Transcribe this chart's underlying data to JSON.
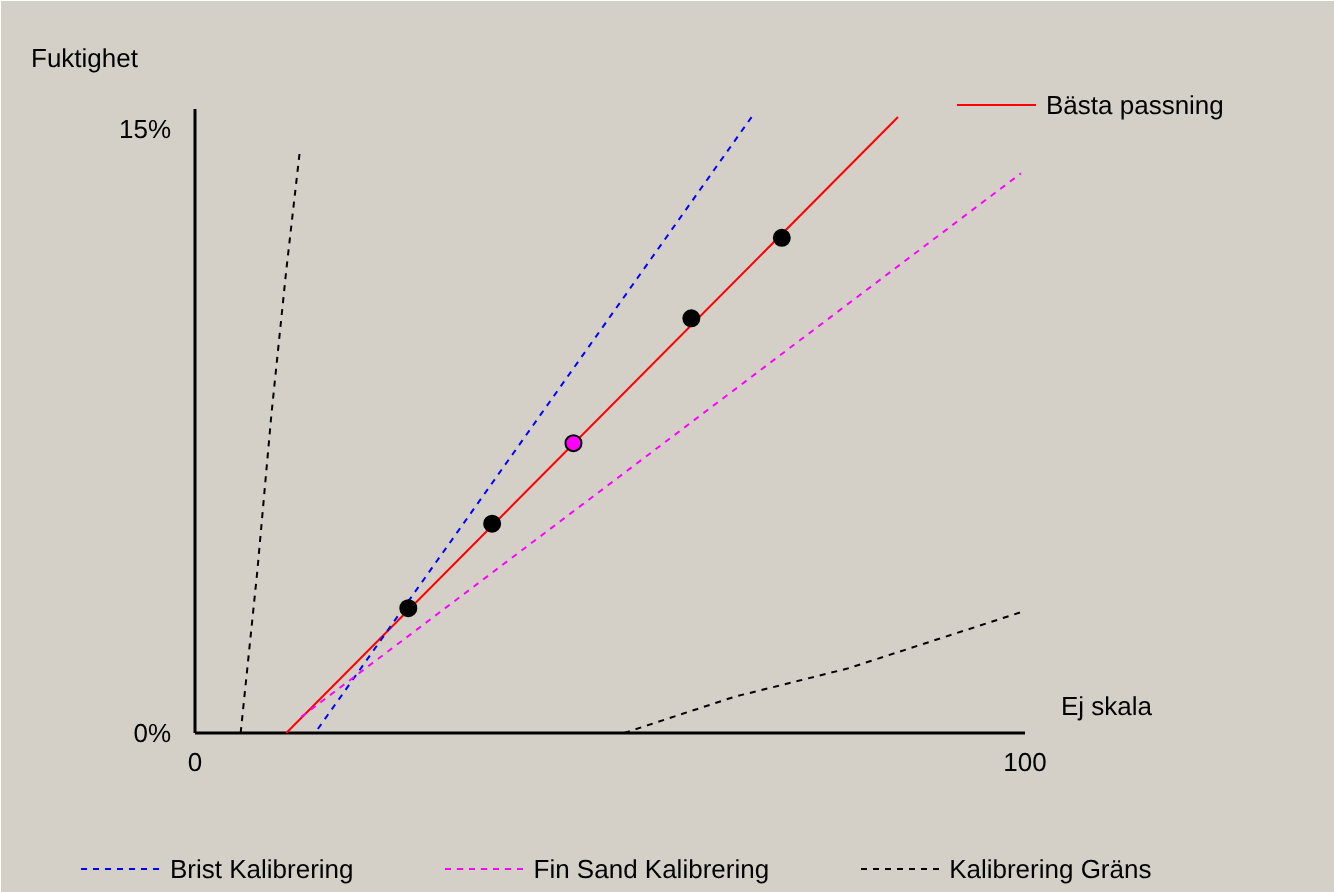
{
  "chart_data": {
    "type": "line",
    "xlabel": "Ej skala",
    "ylabel": "Fuktighet",
    "xlim": [
      0,
      100
    ],
    "ylim": [
      0,
      15.5
    ],
    "xticks": [
      0,
      100
    ],
    "yticks": [
      {
        "value": 0,
        "label": "0%"
      },
      {
        "value": 15,
        "label": "15%"
      }
    ],
    "grid": false,
    "legend": "bottom",
    "series": [
      {
        "name": "Bästa passning",
        "color": "#ff0000",
        "line_style": "solid",
        "x": [
          11,
          84.7
        ],
        "values": [
          0,
          15.3
        ]
      },
      {
        "name": "Brist Kalibrering",
        "color": "#0000ff",
        "line_style": "dashed",
        "x": [
          14.8,
          67.4
        ],
        "values": [
          0.1,
          15.4
        ]
      },
      {
        "name": "Fin Sand Kalibrering",
        "color": "#ff00ff",
        "line_style": "dashed",
        "x": [
          12.8,
          99.5
        ],
        "values": [
          0.4,
          13.9
        ]
      },
      {
        "name": "Kalibrering Gräns",
        "color": "#000000",
        "line_style": "dashed",
        "x": [
          5.5,
          7.5,
          9.2,
          11,
          12.6
        ],
        "values": [
          0,
          4,
          7.9,
          11.5,
          14.4
        ]
      },
      {
        "color": "#000000",
        "line_style": "dashed",
        "x": [
          51.7,
          65,
          78.6,
          99.5
        ],
        "values": [
          0,
          0.9,
          1.6,
          3
        ]
      },
      {
        "type": "scatter",
        "marker": "circle",
        "x": [
          25.7,
          35.8,
          45.6,
          59.8,
          70.7
        ],
        "values": [
          3.1,
          5.2,
          7.2,
          10.3,
          12.3
        ],
        "colors": [
          "#000000",
          "#000000",
          "#ff00ff",
          "#000000",
          "#000000"
        ]
      }
    ]
  }
}
